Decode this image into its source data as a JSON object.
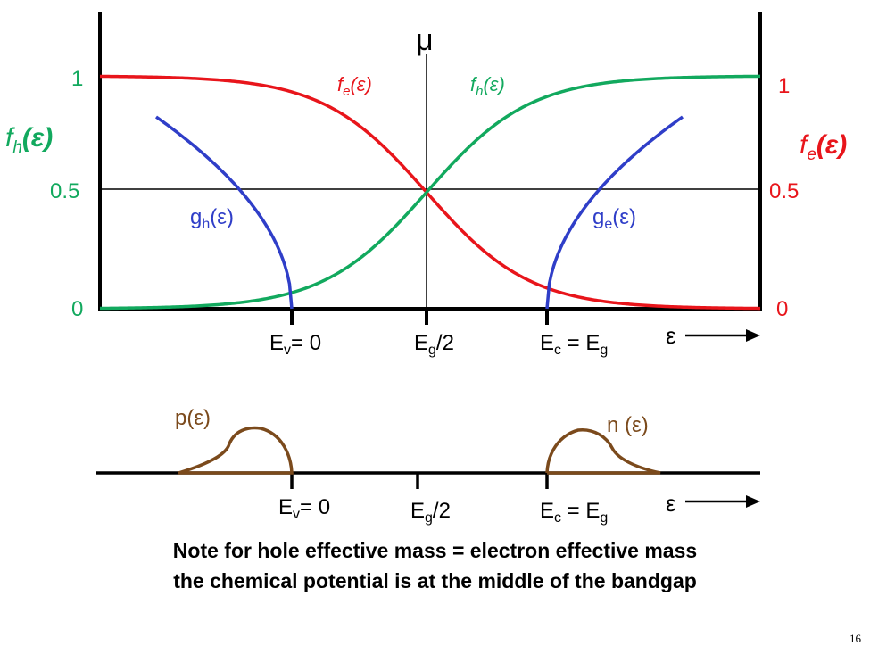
{
  "colors": {
    "fe": "#e8151b",
    "fh": "#12a95e",
    "g": "#2f3ec8",
    "carrier": "#7b4a1c",
    "axis": "#000000"
  },
  "top_plot": {
    "mu_label": "μ",
    "left_axis": {
      "title": "f",
      "title_sub": "h",
      "title_arg": "(ε)",
      "ticks": [
        "1",
        "0.5",
        "0"
      ]
    },
    "right_axis": {
      "title": "f",
      "title_sub": "e",
      "title_arg": "(ε)",
      "ticks": [
        "1",
        "0.5",
        "0"
      ]
    },
    "curve_labels": {
      "fe": {
        "main": "f",
        "sub": "e",
        "arg": "(ε)"
      },
      "fh": {
        "main": "f",
        "sub": "h",
        "arg": "(ε)"
      },
      "gh": {
        "main": "g",
        "sub": "h",
        "arg": "(ε)"
      },
      "ge": {
        "main": "g",
        "sub": "e",
        "arg": "(ε)"
      }
    },
    "x_ticks": {
      "ev": {
        "main": "E",
        "sub": "v",
        "rest": "= 0"
      },
      "mid": {
        "main": "E",
        "sub": "g",
        "rest": "/2"
      },
      "ec": {
        "main": "E",
        "sub": "c",
        "rest": " = E",
        "sub2": "g"
      }
    },
    "epsilon_label": "ε"
  },
  "bottom_plot": {
    "p_label": "p(ε)",
    "n_label": "n (ε)",
    "x_ticks": {
      "ev": {
        "main": "E",
        "sub": "v",
        "rest": "= 0"
      },
      "mid": {
        "main": "E",
        "sub": "g",
        "rest": "/2"
      },
      "ec": {
        "main": "E",
        "sub": "c",
        "rest": " = E",
        "sub2": "g"
      }
    },
    "epsilon_label": "ε"
  },
  "note": {
    "line1": "Note for hole effective mass = electron effective mass",
    "line2": "the chemical potential is at the middle of the bandgap"
  },
  "page_number": "16"
}
